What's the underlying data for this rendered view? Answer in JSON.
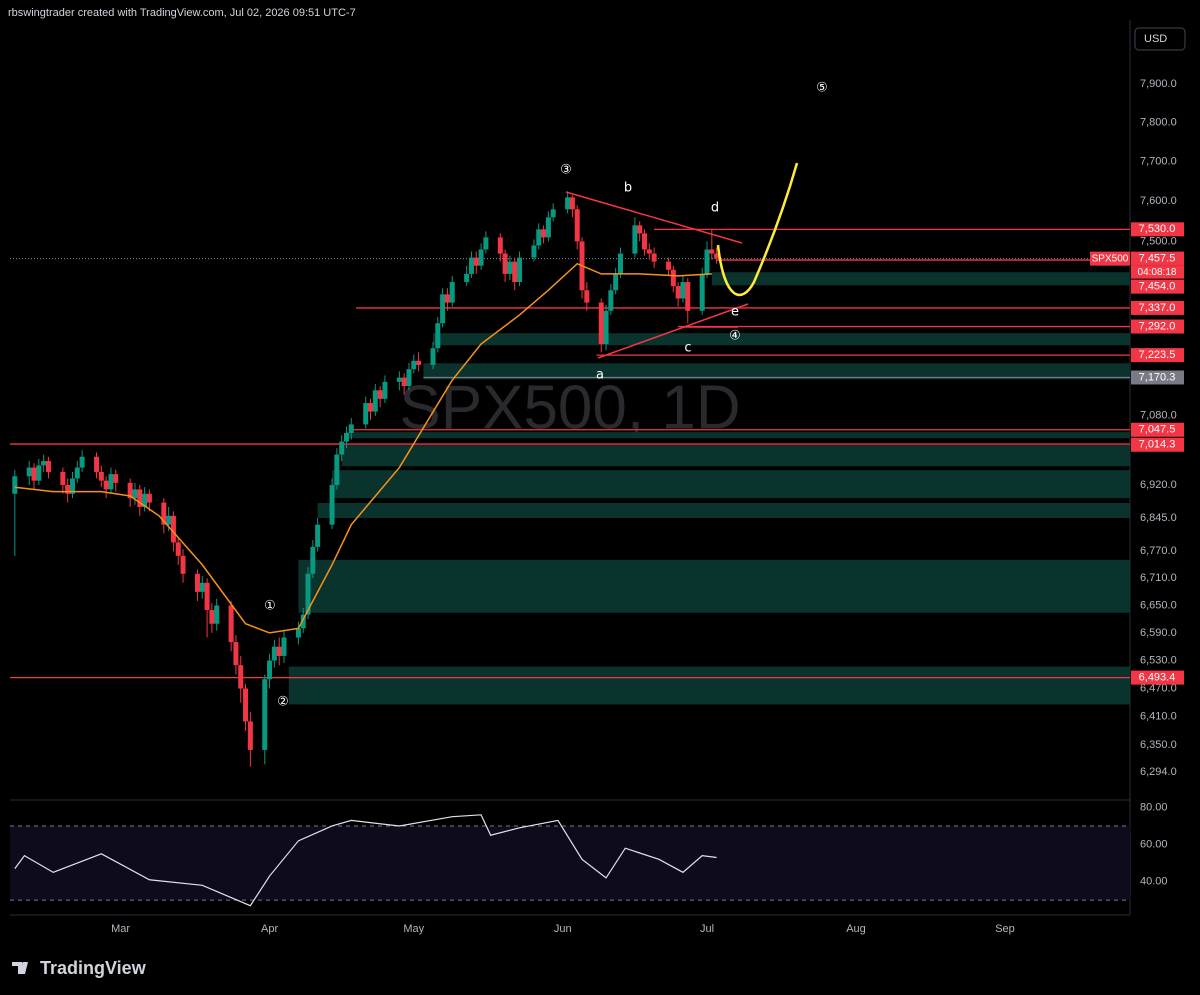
{
  "header": {
    "author_line": "rbswingtrader created with TradingView.com, Jul 02, 2026 09:51 UTC-7",
    "currency": "USD",
    "brand": "TradingView"
  },
  "chart_data": [
    {
      "type": "candlestick",
      "watermark": "SPX500, 1D",
      "symbol": "SPX500",
      "countdown": "04:08:18",
      "up_color": "#089981",
      "down_color": "#f23645",
      "log": true,
      "x": [
        37,
        40,
        41,
        42,
        43,
        44,
        47,
        48,
        49,
        50,
        51,
        54,
        55,
        56,
        57,
        58,
        61,
        62,
        63,
        64,
        65,
        68,
        69,
        70,
        71,
        72,
        75,
        76,
        77,
        78,
        79,
        82,
        83,
        84,
        85,
        86,
        89,
        90,
        91,
        92,
        93,
        96,
        97,
        98,
        99,
        100,
        103,
        104,
        105,
        106,
        107,
        110,
        111,
        112,
        113,
        114,
        117,
        118,
        119,
        120,
        121,
        124,
        125,
        126,
        127,
        128,
        131,
        132,
        133,
        134,
        135,
        138,
        139,
        140,
        141,
        142,
        145,
        146,
        147,
        148,
        149,
        152,
        153,
        154,
        155,
        156,
        159,
        160,
        161,
        162,
        163,
        166,
        167,
        168,
        169,
        170,
        173,
        174,
        175,
        176,
        177,
        180,
        181,
        182,
        183
      ],
      "open": [
        6900,
        6940,
        6960,
        6930,
        6965,
        6975,
        6950,
        6920,
        6900,
        6935,
        6960,
        6985,
        6950,
        6930,
        6910,
        6945,
        6925,
        6890,
        6910,
        6870,
        6900,
        6880,
        6830,
        6850,
        6790,
        6760,
        6720,
        6680,
        6700,
        6640,
        6610,
        6650,
        6570,
        6520,
        6470,
        6400,
        6340,
        6490,
        6530,
        6560,
        6540,
        6580,
        6600,
        6630,
        6720,
        6780,
        6830,
        6920,
        6990,
        7020,
        7040,
        7060,
        7110,
        7090,
        7140,
        7120,
        7160,
        7170,
        7150,
        7190,
        7210,
        7200,
        7240,
        7300,
        7370,
        7350,
        7400,
        7420,
        7460,
        7440,
        7480,
        7510,
        7470,
        7420,
        7450,
        7400,
        7460,
        7490,
        7530,
        7510,
        7560,
        7580,
        7610,
        7580,
        7500,
        7380,
        7350,
        7250,
        7330,
        7380,
        7420,
        7470,
        7540,
        7520,
        7480,
        7470,
        7450,
        7430,
        7390,
        7360,
        7400,
        7330,
        7420,
        7480,
        7470
      ],
      "high": [
        6955,
        6975,
        6970,
        6980,
        6990,
        6985,
        6960,
        6935,
        6950,
        6975,
        7000,
        6995,
        6965,
        6940,
        6960,
        6955,
        6935,
        6925,
        6920,
        6915,
        6910,
        6890,
        6870,
        6860,
        6800,
        6775,
        6730,
        6715,
        6710,
        6655,
        6665,
        6660,
        6585,
        6540,
        6480,
        6420,
        6500,
        6545,
        6575,
        6580,
        6595,
        6615,
        6645,
        6735,
        6795,
        6845,
        6935,
        7005,
        7035,
        7055,
        7075,
        7125,
        7120,
        7155,
        7150,
        7175,
        7185,
        7180,
        7205,
        7225,
        7230,
        7255,
        7315,
        7385,
        7385,
        7415,
        7440,
        7475,
        7475,
        7495,
        7525,
        7520,
        7480,
        7465,
        7460,
        7475,
        7505,
        7545,
        7540,
        7575,
        7595,
        7625,
        7615,
        7590,
        7510,
        7400,
        7360,
        7345,
        7395,
        7435,
        7485,
        7560,
        7550,
        7530,
        7495,
        7485,
        7460,
        7440,
        7400,
        7415,
        7410,
        7435,
        7500,
        7530,
        7485
      ],
      "low": [
        6760,
        6920,
        6910,
        6920,
        6950,
        6935,
        6900,
        6880,
        6890,
        6925,
        6950,
        6935,
        6915,
        6890,
        6900,
        6905,
        6870,
        6875,
        6850,
        6860,
        6860,
        6810,
        6815,
        6770,
        6740,
        6700,
        6660,
        6665,
        6580,
        6590,
        6595,
        6550,
        6500,
        6440,
        6380,
        6305,
        6310,
        6470,
        6515,
        6520,
        6525,
        6565,
        6590,
        6620,
        6710,
        6770,
        6820,
        6910,
        6975,
        7005,
        7025,
        7050,
        7070,
        7080,
        7100,
        7110,
        7140,
        7130,
        7140,
        7180,
        7185,
        7190,
        7230,
        7290,
        7330,
        7340,
        7390,
        7410,
        7420,
        7430,
        7470,
        7450,
        7400,
        7405,
        7380,
        7390,
        7450,
        7480,
        7495,
        7500,
        7550,
        7570,
        7560,
        7480,
        7360,
        7330,
        7230,
        7235,
        7320,
        7370,
        7410,
        7460,
        7500,
        7465,
        7455,
        7435,
        7415,
        7375,
        7340,
        7350,
        7300,
        7320,
        7410,
        7455,
        7445
      ],
      "close": [
        6940,
        6960,
        6930,
        6965,
        6975,
        6950,
        6920,
        6900,
        6935,
        6960,
        6985,
        6950,
        6930,
        6910,
        6945,
        6925,
        6890,
        6910,
        6870,
        6900,
        6880,
        6830,
        6850,
        6790,
        6760,
        6720,
        6680,
        6700,
        6640,
        6610,
        6650,
        6570,
        6520,
        6470,
        6400,
        6340,
        6490,
        6530,
        6560,
        6540,
        6580,
        6600,
        6630,
        6720,
        6780,
        6830,
        6920,
        6990,
        7020,
        7040,
        7060,
        7110,
        7090,
        7140,
        7120,
        7160,
        7170,
        7150,
        7190,
        7210,
        7200,
        7240,
        7300,
        7370,
        7350,
        7400,
        7420,
        7460,
        7440,
        7480,
        7510,
        7470,
        7420,
        7450,
        7400,
        7460,
        7490,
        7530,
        7510,
        7560,
        7580,
        7610,
        7580,
        7500,
        7380,
        7350,
        7250,
        7330,
        7380,
        7420,
        7470,
        7540,
        7520,
        7480,
        7470,
        7450,
        7430,
        7390,
        7360,
        7400,
        7330,
        7420,
        7480,
        7470,
        7457.5
      ],
      "ma": {
        "color": "#f7931a",
        "x": [
          37,
          45,
          55,
          61,
          67,
          76,
          85,
          90,
          96,
          103,
          107,
          117,
          128,
          134,
          142,
          148,
          154,
          159,
          167,
          175,
          182
        ],
        "values": [
          6915,
          6905,
          6905,
          6895,
          6850,
          6740,
          6610,
          6590,
          6600,
          6740,
          6830,
          6960,
          7164,
          7250,
          7320,
          7380,
          7445,
          7420,
          7420,
          7415,
          7420
        ]
      },
      "xlim": [
        36,
        269
      ],
      "xticks": [
        {
          "value": 59,
          "label": "Mar"
        },
        {
          "value": 90,
          "label": "Apr"
        },
        {
          "value": 120,
          "label": "May"
        },
        {
          "value": 151,
          "label": "Jun"
        },
        {
          "value": 181,
          "label": "Jul"
        },
        {
          "value": 212,
          "label": "Aug"
        },
        {
          "value": 243,
          "label": "Sep"
        }
      ],
      "ylim": [
        6236,
        8096
      ],
      "yticks": [
        {
          "value": 7900,
          "label": "7,900.0"
        },
        {
          "value": 7800,
          "label": "7,800.0"
        },
        {
          "value": 7700,
          "label": "7,700.0"
        },
        {
          "value": 7600,
          "label": "7,600.0"
        },
        {
          "value": 7500,
          "label": "7,500.0"
        },
        {
          "value": 7080,
          "label": "7,080.0"
        },
        {
          "value": 6920,
          "label": "6,920.0"
        },
        {
          "value": 6845,
          "label": "6,845.0"
        },
        {
          "value": 6770,
          "label": "6,770.0"
        },
        {
          "value": 6710,
          "label": "6,710.0"
        },
        {
          "value": 6650,
          "label": "6,650.0"
        },
        {
          "value": 6590,
          "label": "6,590.0"
        },
        {
          "value": 6530,
          "label": "6,530.0"
        },
        {
          "value": 6470,
          "label": "6,470.0"
        },
        {
          "value": 6410,
          "label": "6,410.0"
        },
        {
          "value": 6350,
          "label": "6,350.0"
        },
        {
          "value": 6294,
          "label": "6,294.0"
        }
      ],
      "levels": [
        {
          "value": 7530,
          "label": "7,530.0",
          "from": 170,
          "color": "#f23645"
        },
        {
          "value": 7457.5,
          "label": "7,457.5",
          "from": 36,
          "color": "#f23645",
          "current": true
        },
        {
          "value": 7454,
          "label": "7,454.0",
          "from": 183,
          "color": "#f23645"
        },
        {
          "value": 7337,
          "label": "7,337.0",
          "from": 108,
          "color": "#f23645"
        },
        {
          "value": 7292,
          "label": "7,292.0",
          "from": 175,
          "color": "#f23645"
        },
        {
          "value": 7223.5,
          "label": "7,223.5",
          "from": 158,
          "color": "#f23645"
        },
        {
          "value": 7170.3,
          "label": "7,170.3",
          "from": 122,
          "color": "#787b86"
        },
        {
          "value": 7047.5,
          "label": "7,047.5",
          "from": 107,
          "color": "#f23645"
        },
        {
          "value": 7014.3,
          "label": "7,014.3",
          "from": 36,
          "color": "#f23645"
        },
        {
          "value": 6493.4,
          "label": "6,493.4",
          "from": 36,
          "color": "#f23645"
        }
      ],
      "zones": [
        {
          "from": 182,
          "low": 7392,
          "high": 7424
        },
        {
          "from": 124,
          "low": 7247,
          "high": 7276
        },
        {
          "from": 122,
          "low": 7166,
          "high": 7204
        },
        {
          "from": 106,
          "low": 7028,
          "high": 7042
        },
        {
          "from": 105,
          "low": 6963,
          "high": 7012
        },
        {
          "from": 103,
          "low": 6890,
          "high": 6954
        },
        {
          "from": 100,
          "low": 6845,
          "high": 6879
        },
        {
          "from": 96,
          "low": 6634,
          "high": 6751
        },
        {
          "from": 94,
          "low": 6436,
          "high": 6517
        }
      ],
      "zone_color": "#0b332d",
      "annotations": [
        "①",
        "②",
        "③",
        "④",
        "⑤",
        "a",
        "b",
        "c",
        "d",
        "e"
      ]
    },
    {
      "type": "line",
      "series": [
        {
          "color": "#e0e3eb",
          "x": [
            37,
            39,
            45,
            55,
            65,
            76,
            86,
            90,
            96,
            103,
            107,
            117,
            128,
            134,
            136,
            142,
            150,
            155,
            160,
            164,
            171,
            176,
            180,
            183
          ],
          "values": [
            47,
            54,
            45,
            55,
            41,
            38,
            27,
            43,
            62,
            70,
            73,
            70,
            75,
            76,
            65,
            69,
            73,
            52,
            42,
            58,
            52,
            45,
            54,
            53
          ]
        }
      ],
      "ylim": [
        22,
        84
      ],
      "band": [
        30,
        70
      ],
      "yticks": [
        {
          "value": 80,
          "label": "80.00"
        },
        {
          "value": 60,
          "label": "60.00"
        },
        {
          "value": 40,
          "label": "40.00"
        }
      ]
    }
  ]
}
